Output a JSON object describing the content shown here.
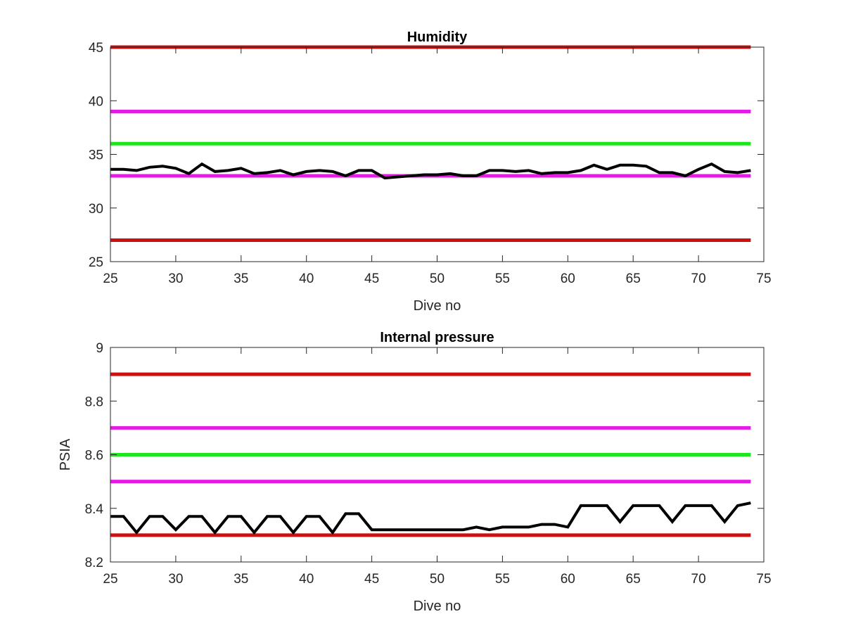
{
  "chart_data": [
    {
      "type": "line",
      "title": "Humidity",
      "xlabel": "Dive no",
      "ylabel": "",
      "xlim": [
        25,
        75
      ],
      "ylim": [
        25,
        45
      ],
      "xticks": [
        "25",
        "30",
        "35",
        "40",
        "45",
        "50",
        "55",
        "60",
        "65",
        "70",
        "75"
      ],
      "yticks": [
        "25",
        "30",
        "35",
        "40",
        "45"
      ],
      "grid": false,
      "reference_lines": [
        {
          "y": 45,
          "color": "#cc1111"
        },
        {
          "y": 39,
          "color": "#e61ae6"
        },
        {
          "y": 36,
          "color": "#1ee61e"
        },
        {
          "y": 33,
          "color": "#e61ae6"
        },
        {
          "y": 27,
          "color": "#cc1111"
        }
      ],
      "series": [
        {
          "color": "#000000",
          "x": [
            25,
            26,
            27,
            28,
            29,
            30,
            31,
            32,
            33,
            34,
            35,
            36,
            37,
            38,
            39,
            40,
            41,
            42,
            43,
            44,
            45,
            46,
            47,
            48,
            49,
            50,
            51,
            52,
            53,
            54,
            55,
            56,
            57,
            58,
            59,
            60,
            61,
            62,
            63,
            64,
            65,
            66,
            67,
            68,
            69,
            70,
            71,
            72,
            73,
            74
          ],
          "y": [
            33.6,
            33.6,
            33.5,
            33.8,
            33.9,
            33.7,
            33.2,
            34.1,
            33.4,
            33.5,
            33.7,
            33.2,
            33.3,
            33.5,
            33.1,
            33.4,
            33.5,
            33.4,
            33.0,
            33.5,
            33.5,
            32.8,
            32.9,
            33.0,
            33.1,
            33.1,
            33.2,
            33.0,
            33.0,
            33.5,
            33.5,
            33.4,
            33.5,
            33.2,
            33.3,
            33.3,
            33.5,
            34.0,
            33.6,
            34.0,
            34.0,
            33.9,
            33.3,
            33.3,
            33.0,
            33.6,
            34.1,
            33.4,
            33.3,
            33.5
          ]
        }
      ]
    },
    {
      "type": "line",
      "title": "Internal pressure",
      "xlabel": "Dive no",
      "ylabel": "PSIA",
      "xlim": [
        25,
        75
      ],
      "ylim": [
        8.2,
        9
      ],
      "xticks": [
        "25",
        "30",
        "35",
        "40",
        "45",
        "50",
        "55",
        "60",
        "65",
        "70",
        "75"
      ],
      "yticks": [
        "8.2",
        "8.4",
        "8.6",
        "8.8",
        "9"
      ],
      "grid": false,
      "reference_lines": [
        {
          "y": 8.9,
          "color": "#cc1111"
        },
        {
          "y": 8.7,
          "color": "#e61ae6"
        },
        {
          "y": 8.6,
          "color": "#1ee61e"
        },
        {
          "y": 8.5,
          "color": "#e61ae6"
        },
        {
          "y": 8.3,
          "color": "#cc1111"
        }
      ],
      "series": [
        {
          "color": "#000000",
          "x": [
            25,
            26,
            27,
            28,
            29,
            30,
            31,
            32,
            33,
            34,
            35,
            36,
            37,
            38,
            39,
            40,
            41,
            42,
            43,
            44,
            45,
            46,
            47,
            48,
            49,
            50,
            51,
            52,
            53,
            54,
            55,
            56,
            57,
            58,
            59,
            60,
            61,
            62,
            63,
            64,
            65,
            66,
            67,
            68,
            69,
            70,
            71,
            72,
            73,
            74
          ],
          "y": [
            8.37,
            8.37,
            8.31,
            8.37,
            8.37,
            8.32,
            8.37,
            8.37,
            8.31,
            8.37,
            8.37,
            8.31,
            8.37,
            8.37,
            8.31,
            8.37,
            8.37,
            8.31,
            8.38,
            8.38,
            8.32,
            8.32,
            8.32,
            8.32,
            8.32,
            8.32,
            8.32,
            8.32,
            8.33,
            8.32,
            8.33,
            8.33,
            8.33,
            8.34,
            8.34,
            8.33,
            8.41,
            8.41,
            8.41,
            8.35,
            8.41,
            8.41,
            8.41,
            8.35,
            8.41,
            8.41,
            8.41,
            8.35,
            8.41,
            8.42
          ]
        }
      ]
    }
  ]
}
